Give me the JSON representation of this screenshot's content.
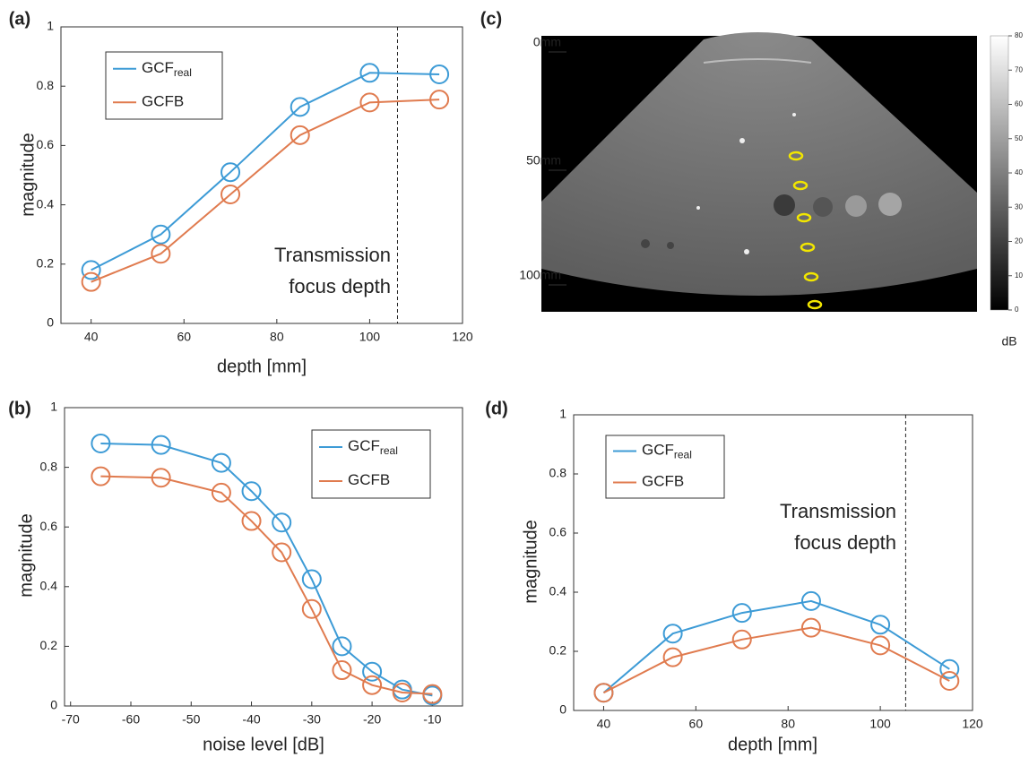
{
  "chart_data": [
    {
      "type": "line",
      "panel": "(a)",
      "xlabel": "depth [mm]",
      "ylabel": "magnitude",
      "x": [
        40,
        55,
        70,
        85,
        100,
        115
      ],
      "series": [
        {
          "name": "GCF",
          "subscript": "real",
          "color": "#3d9bd6",
          "values": [
            0.18,
            0.3,
            0.51,
            0.73,
            0.845,
            0.84
          ]
        },
        {
          "name": "GCFB",
          "color": "#e07b4f",
          "values": [
            0.14,
            0.235,
            0.435,
            0.635,
            0.745,
            0.755
          ]
        }
      ],
      "xlim": [
        33.5,
        120
      ],
      "xticks": [
        40,
        60,
        80,
        100,
        120
      ],
      "ylim": [
        0,
        1
      ],
      "yticks": [
        0,
        0.2,
        0.4,
        0.6,
        0.8,
        1
      ],
      "vline": 106,
      "annotation": [
        "Transmission",
        "focus depth"
      ]
    },
    {
      "type": "line",
      "panel": "(b)",
      "xlabel": "noise level [dB]",
      "ylabel": "magnitude",
      "x": [
        -65,
        -55,
        -45,
        -40,
        -35,
        -30,
        -25,
        -20,
        -15,
        -10
      ],
      "series": [
        {
          "name": "GCF",
          "subscript": "real",
          "color": "#3d9bd6",
          "values": [
            0.88,
            0.875,
            0.815,
            0.72,
            0.615,
            0.425,
            0.2,
            0.115,
            0.055,
            0.035
          ]
        },
        {
          "name": "GCFB",
          "color": "#e07b4f",
          "values": [
            0.77,
            0.765,
            0.715,
            0.62,
            0.515,
            0.325,
            0.12,
            0.07,
            0.045,
            0.04
          ]
        }
      ],
      "xlim": [
        -71,
        -5
      ],
      "xticks": [
        -70,
        -60,
        -50,
        -40,
        -30,
        -20,
        -10
      ],
      "ylim": [
        0,
        1
      ],
      "yticks": [
        0,
        0.2,
        0.4,
        0.6,
        0.8,
        1
      ]
    },
    {
      "type": "image",
      "panel": "(c)",
      "depth_labels": [
        "0mm",
        "50mm",
        "100mm"
      ],
      "colorbar": {
        "ylim": [
          0,
          80
        ],
        "yticks": [
          0,
          10,
          20,
          30,
          40,
          50,
          60,
          70,
          80
        ],
        "label": "dB"
      }
    },
    {
      "type": "line",
      "panel": "(d)",
      "xlabel": "depth [mm]",
      "ylabel": "magnitude",
      "x": [
        40,
        55,
        70,
        85,
        100,
        115
      ],
      "series": [
        {
          "name": "GCF",
          "subscript": "real",
          "color": "#3d9bd6",
          "values": [
            0.06,
            0.26,
            0.33,
            0.37,
            0.29,
            0.14
          ]
        },
        {
          "name": "GCFB",
          "color": "#e07b4f",
          "values": [
            0.06,
            0.18,
            0.24,
            0.28,
            0.22,
            0.1
          ]
        }
      ],
      "xlim": [
        33.5,
        120
      ],
      "xticks": [
        40,
        60,
        80,
        100,
        120
      ],
      "ylim": [
        0,
        1
      ],
      "yticks": [
        0,
        0.2,
        0.4,
        0.6,
        0.8,
        1
      ],
      "vline": 105.5,
      "annotation": [
        "Transmission",
        "focus depth"
      ]
    }
  ]
}
